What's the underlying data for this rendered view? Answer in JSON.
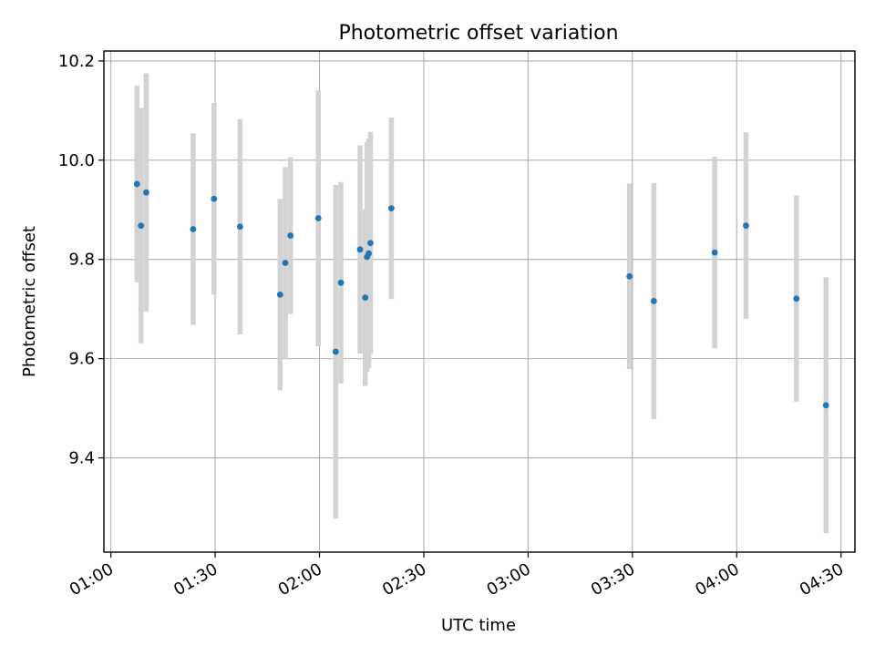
{
  "chart_data": {
    "type": "scatter",
    "title": "Photometric offset variation",
    "xlabel": "UTC time",
    "ylabel": "Photometric offset",
    "x_tick_labels": [
      "01:00",
      "01:30",
      "02:00",
      "02:30",
      "03:00",
      "03:30",
      "04:00",
      "04:30"
    ],
    "y_tick_labels": [
      "9.4",
      "9.6",
      "9.8",
      "10.0",
      "10.2"
    ],
    "y_ticks": [
      9.4,
      9.6,
      9.8,
      10.0,
      10.2
    ],
    "xlim": [
      "00:58",
      "04:34"
    ],
    "ylim": [
      9.21,
      10.22
    ],
    "grid": true,
    "marker_color": "#1f77b4",
    "errorbar_color": "#d3d3d3",
    "points": [
      {
        "x": "01:07:30",
        "y": 9.952,
        "yerr": 0.198
      },
      {
        "x": "01:08:40",
        "y": 9.868,
        "yerr": 0.237
      },
      {
        "x": "01:10:10",
        "y": 9.935,
        "yerr": 0.24
      },
      {
        "x": "01:23:40",
        "y": 9.861,
        "yerr": 0.193
      },
      {
        "x": "01:29:40",
        "y": 9.922,
        "yerr": 0.193
      },
      {
        "x": "01:37:10",
        "y": 9.866,
        "yerr": 0.217
      },
      {
        "x": "01:48:40",
        "y": 9.729,
        "yerr": 0.193
      },
      {
        "x": "01:50:10",
        "y": 9.793,
        "yerr": 0.193
      },
      {
        "x": "01:51:40",
        "y": 9.848,
        "yerr": 0.158
      },
      {
        "x": "01:59:40",
        "y": 9.883,
        "yerr": 0.258
      },
      {
        "x": "02:04:40",
        "y": 9.614,
        "yerr": 0.336
      },
      {
        "x": "02:06:10",
        "y": 9.753,
        "yerr": 0.203
      },
      {
        "x": "02:11:40",
        "y": 9.82,
        "yerr": 0.21
      },
      {
        "x": "02:13:10",
        "y": 9.723,
        "yerr": 0.178
      },
      {
        "x": "02:13:40",
        "y": 9.805,
        "yerr": 0.231
      },
      {
        "x": "02:14:10",
        "y": 9.812,
        "yerr": 0.231
      },
      {
        "x": "02:14:40",
        "y": 9.833,
        "yerr": 0.224
      },
      {
        "x": "02:20:40",
        "y": 9.903,
        "yerr": 0.183
      },
      {
        "x": "03:29:10",
        "y": 9.766,
        "yerr": 0.187
      },
      {
        "x": "03:36:10",
        "y": 9.716,
        "yerr": 0.238
      },
      {
        "x": "03:53:40",
        "y": 9.814,
        "yerr": 0.193
      },
      {
        "x": "04:02:40",
        "y": 9.868,
        "yerr": 0.188
      },
      {
        "x": "04:17:10",
        "y": 9.721,
        "yerr": 0.208
      },
      {
        "x": "04:25:40",
        "y": 9.506,
        "yerr": 0.258
      }
    ]
  }
}
